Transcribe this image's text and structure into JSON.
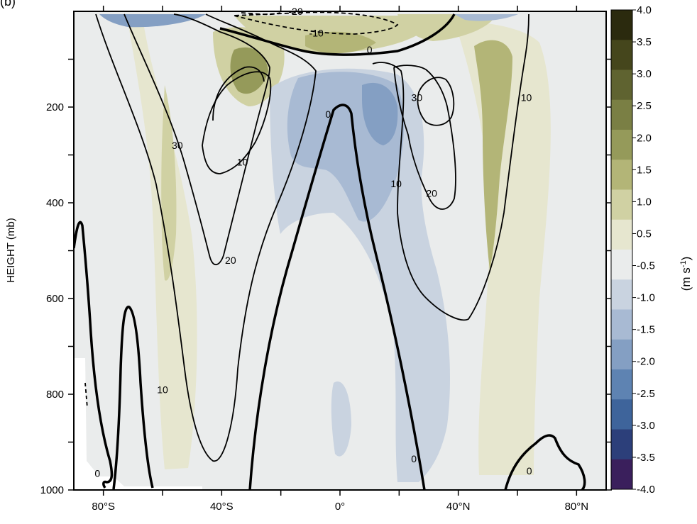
{
  "chart_data": {
    "type": "heatmap",
    "panel_label": "(b)",
    "title": "",
    "xlabel": "",
    "ylabel": "HEIGHT (mb)",
    "x_tick_labels": [
      "80°S",
      "40°S",
      "0°",
      "40°N",
      "80°N"
    ],
    "x_tick_values": [
      -80,
      -40,
      0,
      40,
      80
    ],
    "x_range": [
      -90,
      90
    ],
    "y_tick_labels": [
      "200",
      "400",
      "600",
      "800",
      "1000"
    ],
    "y_tick_values": [
      200,
      400,
      600,
      800,
      1000
    ],
    "y_range": [
      1000,
      0
    ],
    "y_reversed": true,
    "colorbar": {
      "unit_label": "(m s-1)",
      "levels": [
        4.0,
        3.5,
        3.0,
        2.5,
        2.0,
        1.5,
        1.0,
        0.5,
        -0.5,
        -1.0,
        -1.5,
        -2.0,
        -2.5,
        -3.0,
        -3.5,
        -4.0
      ],
      "level_labels": [
        "4.0",
        "3.5",
        "3.0",
        "2.5",
        "2.0",
        "1.5",
        "1.0",
        "0.5",
        "-0.5",
        "-1.0",
        "-1.5",
        "-2.0",
        "-2.5",
        "-3.0",
        "-3.5",
        "-4.0"
      ],
      "colors": [
        "#2b2a0e",
        "#45461c",
        "#5f6330",
        "#7a7f44",
        "#959a5a",
        "#b3b577",
        "#d0d1a3",
        "#e6e6cf",
        "#eaecec",
        "#c9d3e0",
        "#a8bad3",
        "#849fc3",
        "#5e83b2",
        "#3e649b",
        "#2c3f7a",
        "#3a1f5c"
      ]
    },
    "contour_labels": [
      {
        "text": "-20",
        "x": -15,
        "p": 0
      },
      {
        "text": "-10",
        "x": -8,
        "p": 45
      },
      {
        "text": "0",
        "x": 10,
        "p": 80
      },
      {
        "text": "0",
        "x": -4,
        "p": 215
      },
      {
        "text": "10",
        "x": -33,
        "p": 315
      },
      {
        "text": "20",
        "x": -37,
        "p": 520
      },
      {
        "text": "30",
        "x": -55,
        "p": 280
      },
      {
        "text": "30",
        "x": 26,
        "p": 180
      },
      {
        "text": "10",
        "x": 63,
        "p": 180
      },
      {
        "text": "10",
        "x": 19,
        "p": 360
      },
      {
        "text": "20",
        "x": 31,
        "p": 380
      },
      {
        "text": "10",
        "x": -60,
        "p": 790
      },
      {
        "text": "0",
        "x": 25,
        "p": 935
      },
      {
        "text": "0",
        "x": -82,
        "p": 965
      },
      {
        "text": "0",
        "x": 64,
        "p": 960
      }
    ]
  }
}
